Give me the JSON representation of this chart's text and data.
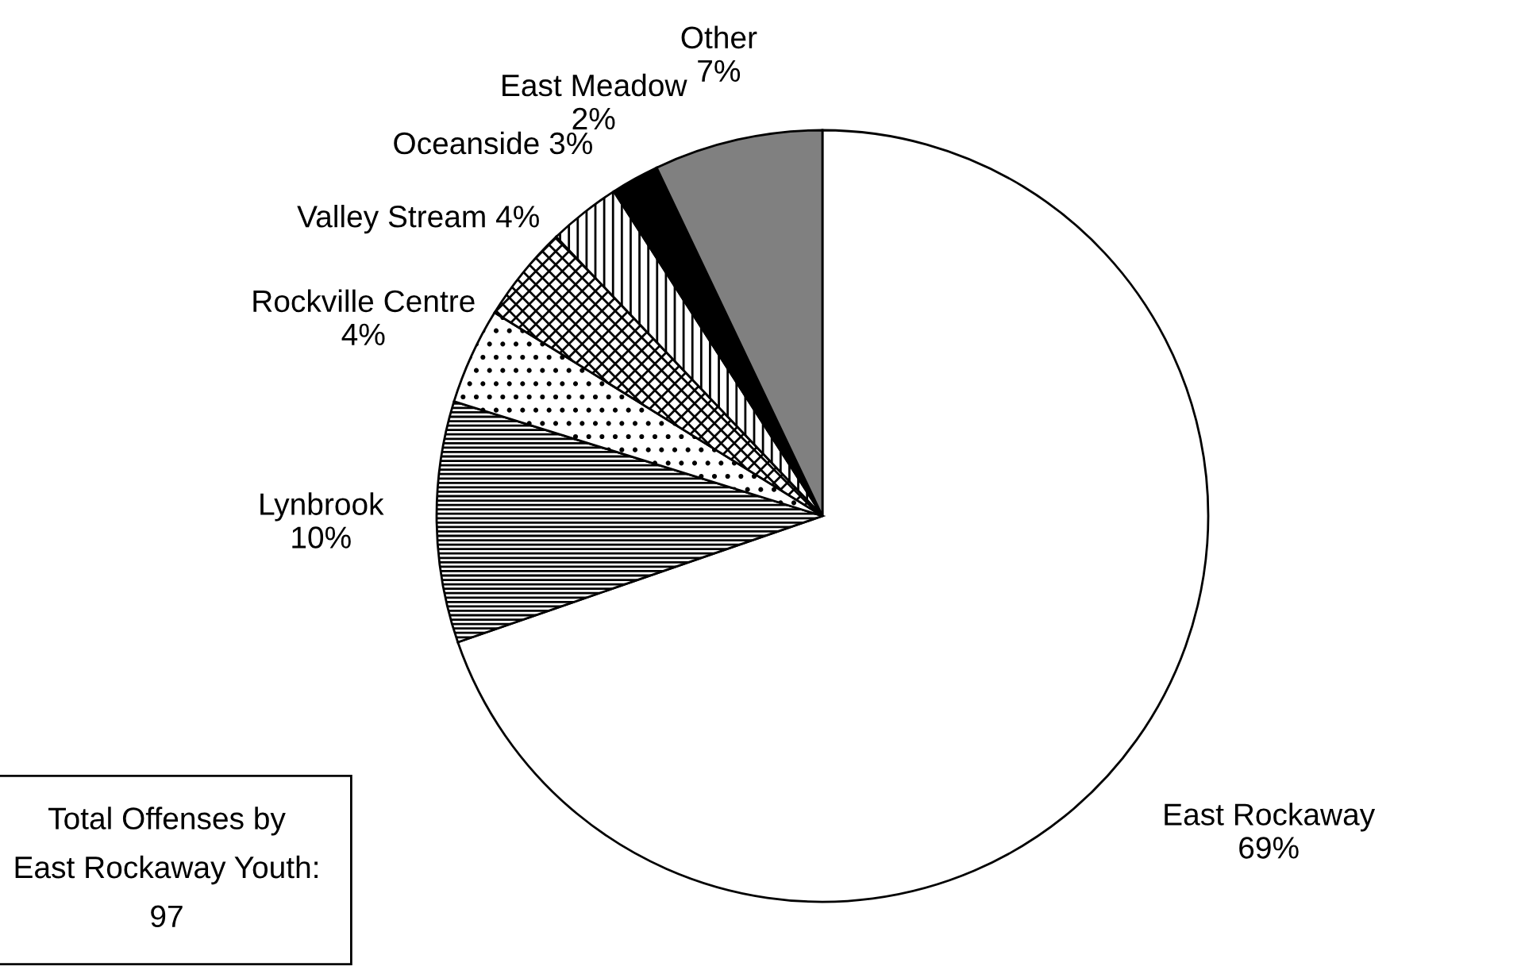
{
  "chart_data": {
    "type": "pie",
    "categories": [
      "East Rockaway",
      "Lynbrook",
      "Rockville Centre",
      "Valley Stream",
      "Oceanside",
      "East Meadow",
      "Other"
    ],
    "values": [
      69,
      10,
      4,
      4,
      3,
      2,
      7
    ],
    "value_labels": [
      "69%",
      "10%",
      "4%",
      "4%",
      "3%",
      "2%",
      "7%"
    ],
    "colors": [
      "#ffffff",
      "#000000",
      "#000000",
      "#000000",
      "#000000",
      "#000000",
      "#808080"
    ],
    "legend": false,
    "annotations": [
      "Total Offenses by\nEast Rockaway Youth:\n97"
    ]
  }
}
